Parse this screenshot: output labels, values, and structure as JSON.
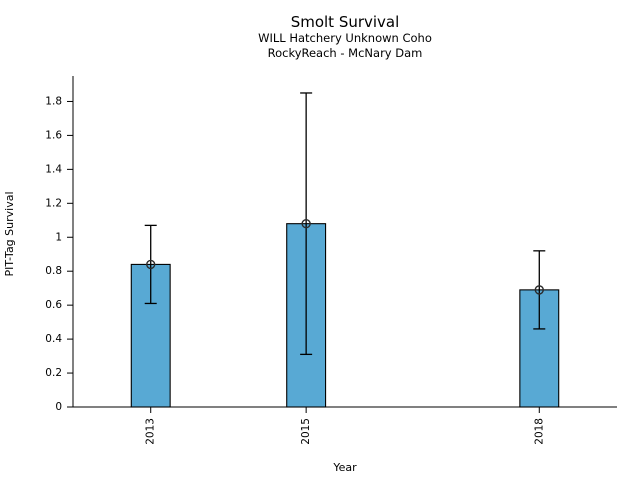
{
  "chart_data": {
    "type": "bar",
    "title": "Smolt Survival",
    "subtitle_line1": "WILL Hatchery Unknown Coho",
    "subtitle_line2": "RockyReach - McNary Dam",
    "xlabel": "Year",
    "ylabel": "PIT-Tag Survival",
    "categories": [
      "2013",
      "2015",
      "2018"
    ],
    "x": [
      2013,
      2015,
      2018
    ],
    "values": [
      0.84,
      1.08,
      0.69
    ],
    "error_low": [
      0.61,
      0.31,
      0.46
    ],
    "error_high": [
      1.07,
      1.85,
      0.92
    ],
    "xlim": [
      2012,
      2019
    ],
    "ylim": [
      0,
      1.95
    ],
    "ytick_values": [
      0,
      0.2,
      0.4,
      0.6,
      0.8,
      1,
      1.2,
      1.4,
      1.6,
      1.8
    ],
    "ytick_labels": [
      "0",
      "0.2",
      "0.4",
      "0.6",
      "0.8",
      "1",
      "1.2",
      "1.4",
      "1.6",
      "1.8"
    ],
    "bar_width_years": 0.5,
    "bar_color": "#58A9D4",
    "bar_edge_color": "#000000",
    "error_color": "#000000",
    "marker": "open-circle",
    "grid": false,
    "legend": null
  }
}
